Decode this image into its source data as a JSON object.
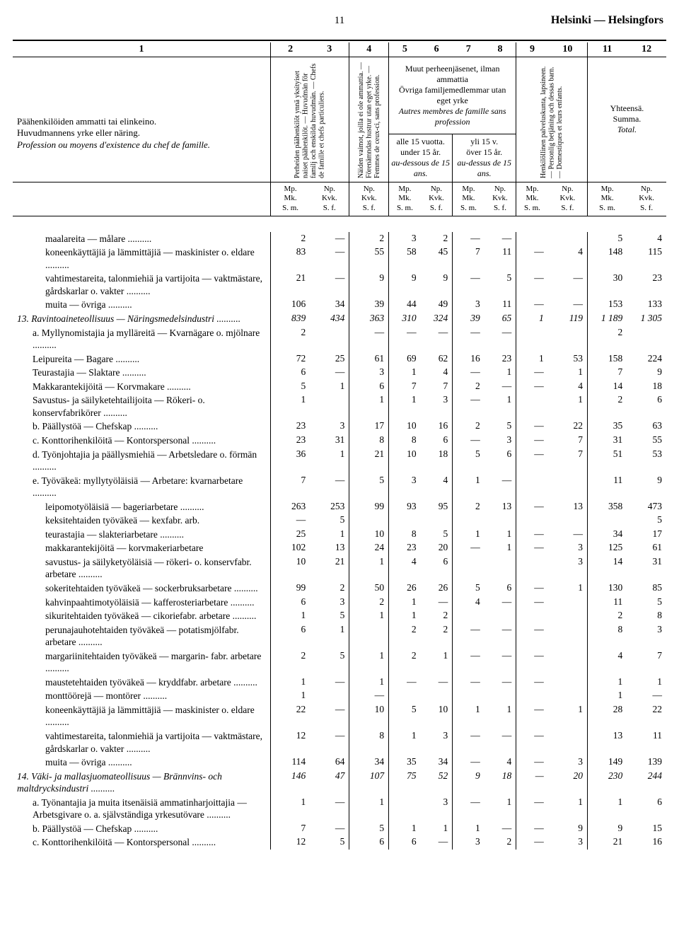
{
  "page_number": "11",
  "city": "Helsinki — Helsingfors",
  "header": {
    "col1_num": "1",
    "col_nums": [
      "2",
      "3",
      "4",
      "5",
      "6",
      "7",
      "8",
      "9",
      "10",
      "11",
      "12"
    ],
    "main_desc_line1": "Päähenkilöiden ammatti tai elinkeino.",
    "main_desc_line2": "Huvudmannens yrke eller näring.",
    "main_desc_line3": "Profession ou moyens d'existence du chef de famille.",
    "col2_3_v": "Perheiden päähenkilöt ynnä yksityiset naiset päähenkilöt. — Huvudmän för familj och enskilda huvudmän. — Chefs de famille et chefs particuliers.",
    "col4_v": "Näiden vaimot, joilla ei ole ammattia. — Förenämndas hustrur utan eget yrke. — Femmes de ceux-ci, sans profession.",
    "col5_8_top_line1": "Muut perheenjäsenet, ilman ammattia",
    "col5_8_top_line2": "Övriga familjemedlemmar utan eget yrke",
    "col5_8_top_line3": "Autres membres de famille sans profession",
    "col5_6_sub_line1": "alle 15 vuotta.",
    "col5_6_sub_line2": "under 15 år.",
    "col5_6_sub_line3": "au-dessous de 15 ans.",
    "col7_8_sub_line1": "yli 15 v.",
    "col7_8_sub_line2": "över 15 år.",
    "col7_8_sub_line3": "au-dessus de 15 ans.",
    "col9_10_v": "Henkilöllinen palveluskunta, lapsineen. — Personlig betjäning och dessas barn. — Domestiques et leurs enfants.",
    "col11_12_line1": "Yhteensä.",
    "col11_12_line2": "Summa.",
    "col11_12_line3": "Total.",
    "unit_mp": "Mp.\nMk.\nS. m.",
    "unit_np": "Np.\nKvk.\nS. f."
  },
  "rows": [
    {
      "desc": "maalareita — målare",
      "indent": 2,
      "dots": true,
      "v": [
        "2",
        "—",
        "2",
        "3",
        "2",
        "—",
        "—",
        "",
        "",
        "5",
        "4"
      ]
    },
    {
      "desc": "koneenkäyttäjiä ja lämmittäjiä — maskinister o. eldare",
      "indent": 2,
      "dots": true,
      "v": [
        "83",
        "—",
        "55",
        "58",
        "45",
        "7",
        "11",
        "—",
        "4",
        "148",
        "115"
      ]
    },
    {
      "desc": "vahtimestareita, talonmiehiä ja vartijoita — vaktmästare, gårdskarlar o. vakter",
      "indent": 2,
      "dots": true,
      "v": [
        "21",
        "—",
        "9",
        "9",
        "9",
        "—",
        "5",
        "—",
        "—",
        "30",
        "23"
      ]
    },
    {
      "desc": "muita — övriga",
      "indent": 2,
      "dots": true,
      "v": [
        "106",
        "34",
        "39",
        "44",
        "49",
        "3",
        "11",
        "—",
        "—",
        "153",
        "133"
      ]
    },
    {
      "desc": "13.  Ravintoaineteollisuus — Näringsmedelsindustri",
      "indent": 0,
      "dots": true,
      "italic": true,
      "v": [
        "839",
        "434",
        "363",
        "310",
        "324",
        "39",
        "65",
        "1",
        "119",
        "1 189",
        "1 305"
      ]
    },
    {
      "desc": "a. Myllynomistajia ja mylläreitä — Kvarnägare o. mjölnare",
      "indent": 1,
      "dots": true,
      "v": [
        "2",
        "",
        "—",
        "—",
        "—",
        "—",
        "—",
        "",
        "",
        "2",
        ""
      ]
    },
    {
      "desc": "Leipureita — Bagare",
      "indent": 1,
      "dots": true,
      "v": [
        "72",
        "25",
        "61",
        "69",
        "62",
        "16",
        "23",
        "1",
        "53",
        "158",
        "224"
      ]
    },
    {
      "desc": "Teurastajia — Slaktare",
      "indent": 1,
      "dots": true,
      "v": [
        "6",
        "—",
        "3",
        "1",
        "4",
        "—",
        "1",
        "—",
        "1",
        "7",
        "9"
      ]
    },
    {
      "desc": "Makkarantekijöitä — Korvmakare",
      "indent": 1,
      "dots": true,
      "v": [
        "5",
        "1",
        "6",
        "7",
        "7",
        "2",
        "—",
        "—",
        "4",
        "14",
        "18"
      ]
    },
    {
      "desc": "Savustus- ja säilyketehtailijoita — Rökeri- o. konservfabrikörer",
      "indent": 1,
      "dots": true,
      "v": [
        "1",
        "",
        "1",
        "1",
        "3",
        "—",
        "1",
        "",
        "1",
        "2",
        "6"
      ]
    },
    {
      "desc": "b. Päällystöä — Chefskap",
      "indent": 1,
      "dots": true,
      "v": [
        "23",
        "3",
        "17",
        "10",
        "16",
        "2",
        "5",
        "—",
        "22",
        "35",
        "63"
      ]
    },
    {
      "desc": "c. Konttorihenkilöitä — Kontorspersonal",
      "indent": 1,
      "dots": true,
      "v": [
        "23",
        "31",
        "8",
        "8",
        "6",
        "—",
        "3",
        "—",
        "7",
        "31",
        "55"
      ]
    },
    {
      "desc": "d. Työnjohtajia ja päällysmiehiä — Arbetsledare o. förmän",
      "indent": 1,
      "dots": true,
      "v": [
        "36",
        "1",
        "21",
        "10",
        "18",
        "5",
        "6",
        "—",
        "7",
        "51",
        "53"
      ]
    },
    {
      "desc": "e. Työväkeä: myllytyöläisiä — Arbetare: kvarnarbetare",
      "indent": 1,
      "dots": true,
      "v": [
        "7",
        "—",
        "5",
        "3",
        "4",
        "1",
        "—",
        "",
        "",
        "11",
        "9"
      ]
    },
    {
      "desc": "leipomotyöläisiä — bageriarbetare",
      "indent": 2,
      "dots": true,
      "v": [
        "263",
        "253",
        "99",
        "93",
        "95",
        "2",
        "13",
        "—",
        "13",
        "358",
        "473"
      ]
    },
    {
      "desc": "keksitehtaiden työväkeä — kexfabr. arb.",
      "indent": 2,
      "dots": false,
      "v": [
        "—",
        "5",
        "",
        "",
        "",
        "",
        "",
        "",
        "",
        "",
        "5"
      ]
    },
    {
      "desc": "teurastajia — slakteriarbetare",
      "indent": 2,
      "dots": true,
      "v": [
        "25",
        "1",
        "10",
        "8",
        "5",
        "1",
        "1",
        "—",
        "—",
        "34",
        "17"
      ]
    },
    {
      "desc": "makkarantekijöitä — korvmakeriarbetare",
      "indent": 2,
      "dots": false,
      "v": [
        "102",
        "13",
        "24",
        "23",
        "20",
        "—",
        "1",
        "—",
        "3",
        "125",
        "61"
      ]
    },
    {
      "desc": "savustus- ja säilyketyöläisiä — rökeri- o. konservfabr. arbetare",
      "indent": 2,
      "dots": true,
      "v": [
        "10",
        "21",
        "1",
        "4",
        "6",
        "",
        "",
        "",
        "3",
        "14",
        "31"
      ]
    },
    {
      "desc": "sokeritehtaiden työväkeä — sockerbruksarbetare",
      "indent": 2,
      "dots": true,
      "v": [
        "99",
        "2",
        "50",
        "26",
        "26",
        "5",
        "6",
        "—",
        "1",
        "130",
        "85"
      ]
    },
    {
      "desc": "kahvinpaahtimotyöläisiä — kafferosteriarbetare",
      "indent": 2,
      "dots": true,
      "v": [
        "6",
        "3",
        "2",
        "1",
        "—",
        "4",
        "—",
        "—",
        "",
        "11",
        "5"
      ]
    },
    {
      "desc": "sikuritehtaiden työväkeä — cikoriefabr. arbetare",
      "indent": 2,
      "dots": true,
      "v": [
        "1",
        "5",
        "1",
        "1",
        "2",
        "",
        "",
        "",
        "",
        "2",
        "8"
      ]
    },
    {
      "desc": "perunajauhotehtaiden työväkeä — potatismjölfabr. arbetare",
      "indent": 2,
      "dots": true,
      "v": [
        "6",
        "1",
        "",
        "2",
        "2",
        "—",
        "—",
        "—",
        "",
        "8",
        "3"
      ]
    },
    {
      "desc": "margariinitehtaiden työväkeä — margarin- fabr. arbetare",
      "indent": 2,
      "dots": true,
      "v": [
        "2",
        "5",
        "1",
        "2",
        "1",
        "—",
        "—",
        "—",
        "",
        "4",
        "7"
      ]
    },
    {
      "desc": "maustetehtaiden työväkeä — kryddfabr. arbetare",
      "indent": 2,
      "dots": true,
      "v": [
        "1",
        "—",
        "1",
        "—",
        "—",
        "—",
        "—",
        "—",
        "",
        "1",
        "1"
      ]
    },
    {
      "desc": "monttöörejä — montörer",
      "indent": 2,
      "dots": true,
      "v": [
        "1",
        "",
        "—",
        "",
        "",
        "",
        "",
        "",
        "",
        "1",
        "—"
      ]
    },
    {
      "desc": "koneenkäyttäjiä ja lämmittäjiä — maskinister o. eldare",
      "indent": 2,
      "dots": true,
      "v": [
        "22",
        "—",
        "10",
        "5",
        "10",
        "1",
        "1",
        "—",
        "1",
        "28",
        "22"
      ]
    },
    {
      "desc": "vahtimestareita, talonmiehiä ja vartijoita — vaktmästare, gårdskarlar o. vakter",
      "indent": 2,
      "dots": true,
      "v": [
        "12",
        "—",
        "8",
        "1",
        "3",
        "—",
        "—",
        "—",
        "",
        "13",
        "11"
      ]
    },
    {
      "desc": "muita — övriga",
      "indent": 2,
      "dots": true,
      "v": [
        "114",
        "64",
        "34",
        "35",
        "34",
        "—",
        "4",
        "—",
        "3",
        "149",
        "139"
      ]
    },
    {
      "desc": "14.  Väki- ja mallasjuomateollisuus — Brännvins- och maltdrycksindustri",
      "indent": 0,
      "dots": true,
      "italic": true,
      "v": [
        "146",
        "47",
        "107",
        "75",
        "52",
        "9",
        "18",
        "—",
        "20",
        "230",
        "244"
      ]
    },
    {
      "desc": "a. Työnantajia ja muita itsenäisiä ammatinharjoittajia — Arbetsgivare o. a. självständiga yrkesutövare",
      "indent": 1,
      "dots": true,
      "v": [
        "1",
        "—",
        "1",
        "",
        "3",
        "—",
        "1",
        "—",
        "1",
        "1",
        "6"
      ]
    },
    {
      "desc": "b. Päällystöä — Chefskap",
      "indent": 1,
      "dots": true,
      "v": [
        "7",
        "—",
        "5",
        "1",
        "1",
        "1",
        "—",
        "—",
        "9",
        "9",
        "15"
      ]
    },
    {
      "desc": "c. Konttorihenkilöitä — Kontorspersonal",
      "indent": 1,
      "dots": true,
      "v": [
        "12",
        "5",
        "6",
        "6",
        "—",
        "3",
        "2",
        "—",
        "3",
        "21",
        "16"
      ]
    }
  ]
}
